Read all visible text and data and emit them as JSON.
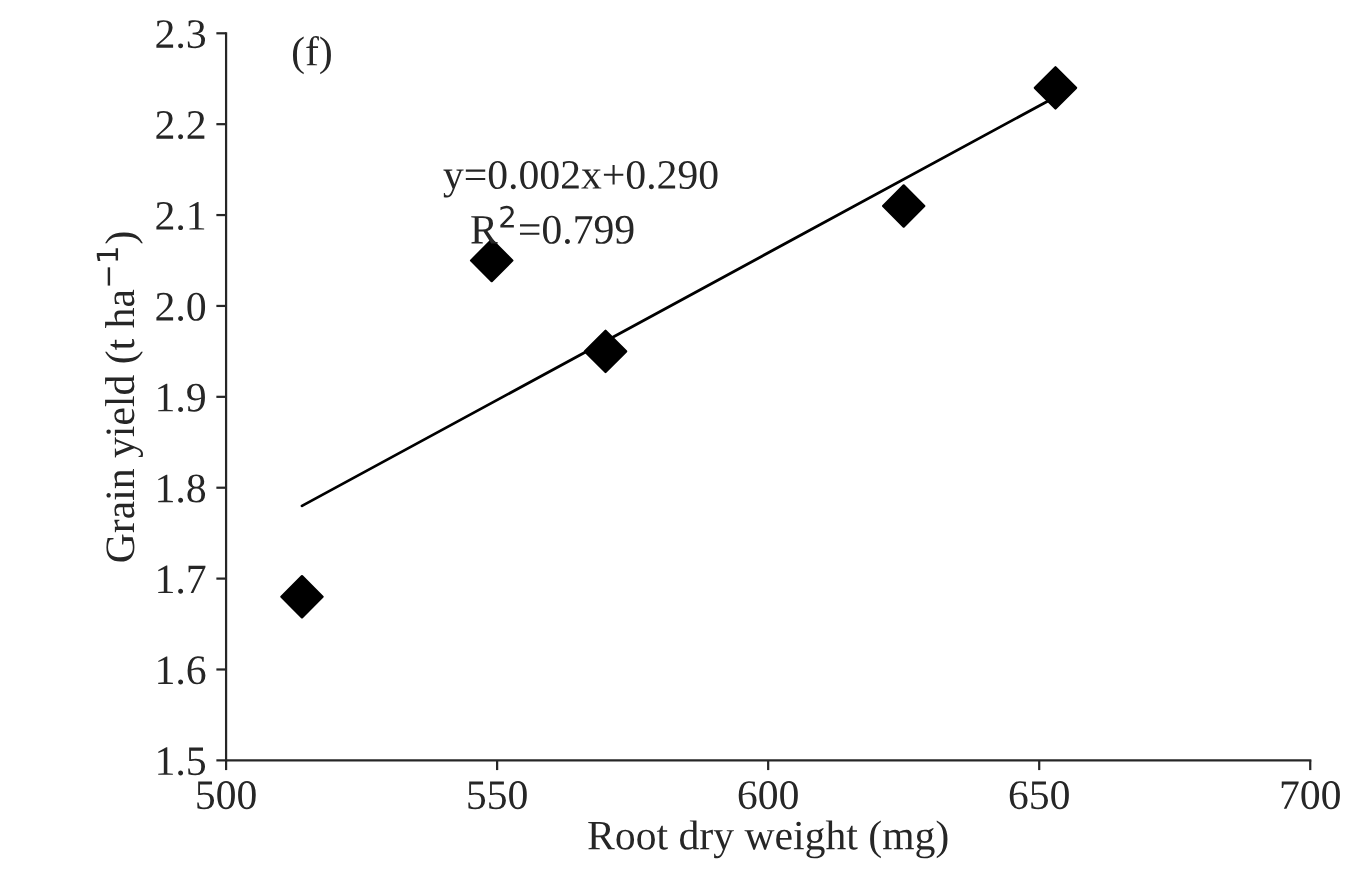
{
  "chart_data": {
    "type": "scatter",
    "xlabel": "Root dry weight (mg)",
    "ylabel": "Grain yield (t ha$^{−1}$)",
    "xlim": [
      500,
      700
    ],
    "xticks": [
      500,
      550,
      600,
      650,
      700
    ],
    "ylim": [
      1.5,
      2.3
    ],
    "yticks": [
      {
        "value": 1.5,
        "label": "1.5"
      },
      {
        "value": 1.6,
        "label": "1.6"
      },
      {
        "value": 1.7,
        "label": "1.7"
      },
      {
        "value": 1.8,
        "label": "1.8"
      },
      {
        "value": 1.9,
        "label": "1.9"
      },
      {
        "value": 2.0,
        "label": "2.0"
      },
      {
        "value": 2.1,
        "label": "2.1"
      },
      {
        "value": 2.2,
        "label": "2.2"
      },
      {
        "value": 2.3,
        "label": "2.3"
      }
    ],
    "grid": false,
    "legend": false,
    "series": [
      {
        "marker": "diamond",
        "color": "#000000",
        "x": [
          514,
          549,
          570,
          625,
          653
        ],
        "values": [
          1.68,
          2.05,
          1.95,
          2.11,
          2.24
        ]
      },
      {
        "type": "line",
        "color": "#000000",
        "x": [
          514,
          653
        ],
        "values": [
          1.78,
          2.23
        ]
      }
    ],
    "annotations": [
      "(f)",
      "y=0.002x+0.290",
      "R$^{2}$=0.799"
    ]
  }
}
